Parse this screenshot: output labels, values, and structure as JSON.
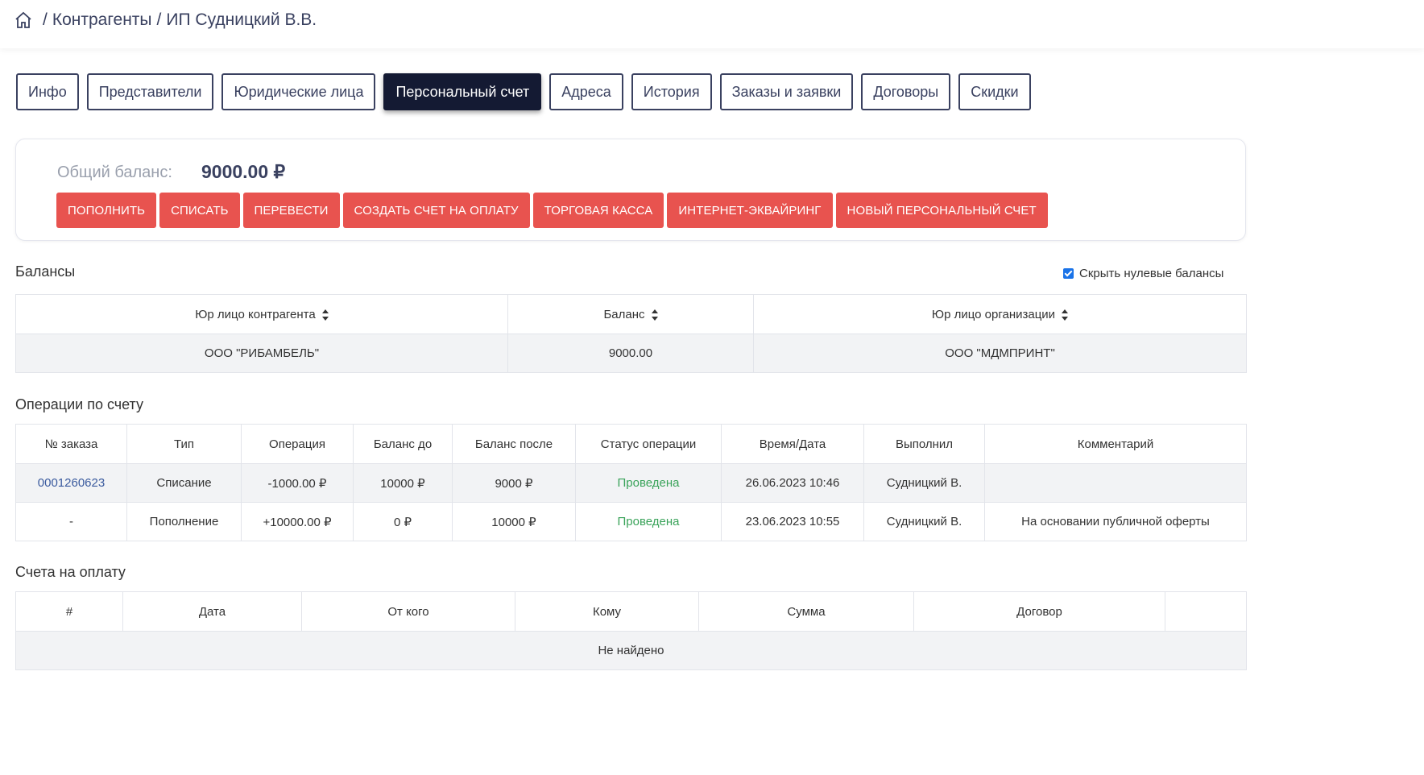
{
  "breadcrumb": {
    "items": [
      "Контрагенты",
      "ИП Судницкий В.В."
    ],
    "separator": "/"
  },
  "tabs": [
    "Инфо",
    "Представители",
    "Юридические лица",
    "Персональный счет",
    "Адреса",
    "История",
    "Заказы и заявки",
    "Договоры",
    "Скидки"
  ],
  "active_tab": "Персональный счет",
  "balance": {
    "label": "Общий баланс:",
    "value": "9000.00 ₽"
  },
  "actions": [
    "ПОПОЛНИТЬ",
    "СПИСАТЬ",
    "ПЕРЕВЕСТИ",
    "СОЗДАТЬ СЧЕТ НА ОПЛАТУ",
    "ТОРГОВАЯ КАССА",
    "ИНТЕРНЕТ-ЭКВАЙРИНГ",
    "НОВЫЙ ПЕРСОНАЛЬНЫЙ СЧЕТ"
  ],
  "balances": {
    "title": "Балансы",
    "hide_zero_label": "Скрыть нулевые балансы",
    "hide_zero_checked": true,
    "columns": [
      "Юр лицо контрагента",
      "Баланс",
      "Юр лицо организации"
    ],
    "rows": [
      [
        "ООО \"РИБАМБЕЛЬ\"",
        "9000.00",
        "ООО \"МДМПРИНТ\""
      ]
    ]
  },
  "operations": {
    "title": "Операции по счету",
    "columns": [
      "№ заказа",
      "Тип",
      "Операция",
      "Баланс до",
      "Баланс после",
      "Статус операции",
      "Время/Дата",
      "Выполнил",
      "Комментарий"
    ],
    "rows": [
      {
        "order": "0001260623",
        "type": "Списание",
        "amount": "-1000.00 ₽",
        "before": "10000 ₽",
        "after": "9000 ₽",
        "status": "Проведена",
        "datetime": "26.06.2023 10:46",
        "by": "Судницкий В.",
        "comment": ""
      },
      {
        "order": "-",
        "type": "Пополнение",
        "amount": "+10000.00 ₽",
        "before": "0 ₽",
        "after": "10000 ₽",
        "status": "Проведена",
        "datetime": "23.06.2023 10:55",
        "by": "Судницкий В.",
        "comment": "На основании публичной оферты"
      }
    ]
  },
  "invoices": {
    "title": "Счета на оплату",
    "columns": [
      "#",
      "Дата",
      "От кого",
      "Кому",
      "Сумма",
      "Договор",
      ""
    ],
    "empty_text": "Не найдено"
  },
  "colors": {
    "accent_red": "#e8534f",
    "active_tab": "#141a33",
    "status_ok": "#3aa35a",
    "link": "#3a5a9e"
  }
}
